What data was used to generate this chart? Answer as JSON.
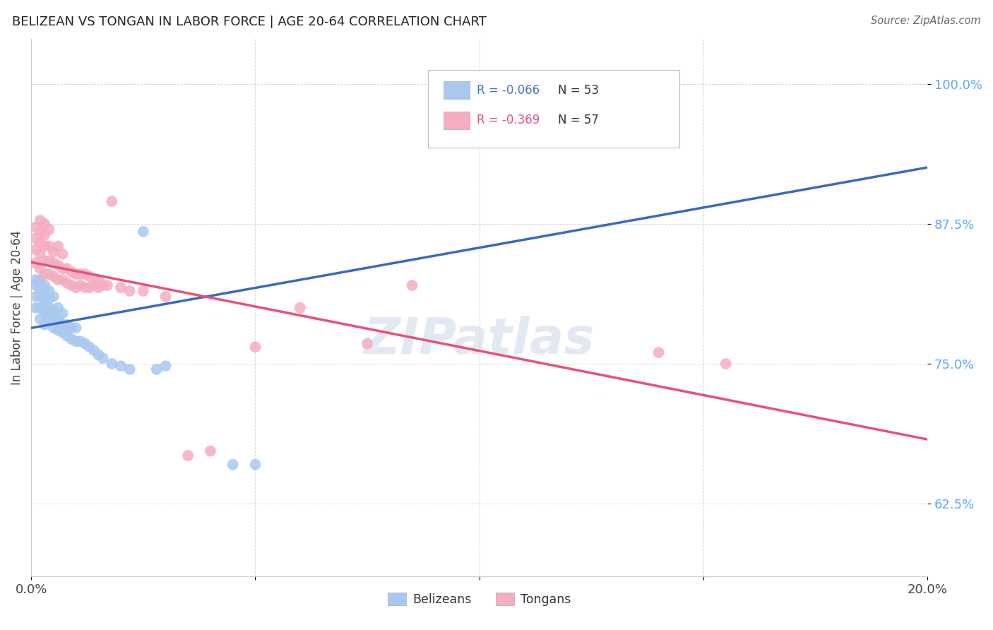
{
  "title": "BELIZEAN VS TONGAN IN LABOR FORCE | AGE 20-64 CORRELATION CHART",
  "source": "Source: ZipAtlas.com",
  "ylabel": "In Labor Force | Age 20-64",
  "xlim": [
    0.0,
    0.2
  ],
  "ylim": [
    0.56,
    1.04
  ],
  "yticks": [
    0.625,
    0.75,
    0.875,
    1.0
  ],
  "ytick_labels": [
    "62.5%",
    "75.0%",
    "87.5%",
    "100.0%"
  ],
  "xticks": [
    0.0,
    0.05,
    0.1,
    0.15,
    0.2
  ],
  "xtick_labels": [
    "0.0%",
    "",
    "",
    "",
    "20.0%"
  ],
  "belizean_R": -0.066,
  "belizean_N": 53,
  "tongan_R": -0.369,
  "tongan_N": 57,
  "belizean_color": "#a8c8f0",
  "tongan_color": "#f5adc0",
  "belizean_line_color": "#3a6abf",
  "tongan_line_color": "#e8507a",
  "watermark": "ZIPatlas",
  "belizean_x": [
    0.001,
    0.001,
    0.001,
    0.001,
    0.002,
    0.002,
    0.002,
    0.002,
    0.002,
    0.002,
    0.003,
    0.003,
    0.003,
    0.003,
    0.003,
    0.003,
    0.004,
    0.004,
    0.004,
    0.004,
    0.004,
    0.005,
    0.005,
    0.005,
    0.005,
    0.006,
    0.006,
    0.006,
    0.007,
    0.007,
    0.007,
    0.008,
    0.008,
    0.009,
    0.009,
    0.01,
    0.01,
    0.011,
    0.012,
    0.013,
    0.014,
    0.015,
    0.016,
    0.018,
    0.02,
    0.022,
    0.025,
    0.028,
    0.03,
    0.045,
    0.05,
    0.1,
    0.105
  ],
  "belizean_y": [
    0.8,
    0.81,
    0.82,
    0.825,
    0.79,
    0.8,
    0.81,
    0.815,
    0.82,
    0.825,
    0.785,
    0.795,
    0.8,
    0.808,
    0.815,
    0.82,
    0.79,
    0.795,
    0.8,
    0.808,
    0.815,
    0.782,
    0.79,
    0.798,
    0.81,
    0.78,
    0.79,
    0.8,
    0.778,
    0.785,
    0.795,
    0.775,
    0.785,
    0.772,
    0.782,
    0.77,
    0.782,
    0.77,
    0.768,
    0.765,
    0.762,
    0.758,
    0.755,
    0.75,
    0.748,
    0.745,
    0.868,
    0.745,
    0.748,
    0.66,
    0.66,
    0.96,
    0.955
  ],
  "tongan_x": [
    0.001,
    0.001,
    0.001,
    0.001,
    0.002,
    0.002,
    0.002,
    0.002,
    0.002,
    0.003,
    0.003,
    0.003,
    0.003,
    0.003,
    0.004,
    0.004,
    0.004,
    0.004,
    0.005,
    0.005,
    0.005,
    0.006,
    0.006,
    0.006,
    0.007,
    0.007,
    0.007,
    0.008,
    0.008,
    0.009,
    0.009,
    0.01,
    0.01,
    0.011,
    0.011,
    0.012,
    0.012,
    0.013,
    0.013,
    0.014,
    0.015,
    0.015,
    0.016,
    0.017,
    0.018,
    0.02,
    0.022,
    0.025,
    0.03,
    0.035,
    0.04,
    0.05,
    0.06,
    0.075,
    0.085,
    0.14,
    0.155
  ],
  "tongan_y": [
    0.84,
    0.852,
    0.862,
    0.872,
    0.835,
    0.848,
    0.858,
    0.868,
    0.878,
    0.83,
    0.842,
    0.855,
    0.865,
    0.875,
    0.83,
    0.842,
    0.855,
    0.87,
    0.828,
    0.84,
    0.85,
    0.825,
    0.838,
    0.855,
    0.825,
    0.835,
    0.848,
    0.822,
    0.835,
    0.82,
    0.832,
    0.818,
    0.83,
    0.82,
    0.83,
    0.818,
    0.83,
    0.818,
    0.828,
    0.82,
    0.818,
    0.825,
    0.82,
    0.82,
    0.895,
    0.818,
    0.815,
    0.815,
    0.81,
    0.668,
    0.672,
    0.765,
    0.8,
    0.768,
    0.82,
    0.76,
    0.75
  ]
}
